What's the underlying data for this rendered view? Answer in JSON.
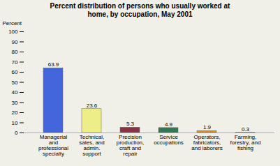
{
  "chart_data": {
    "type": "bar",
    "title": "Percent distribution of persons who usually worked at\nhome, by occupation, May 2001",
    "categories": [
      "Managerial\nand\nprofessional\nspecialty",
      "Technical,\nsales, and\nadmin.\nsupport",
      "Precision\nproduction,\ncraft and\nrepair",
      "Service\noccupations",
      "Operators,\nfabricators,\nand laborers",
      "Farming,\nforestry, and\nfishing"
    ],
    "values": [
      63.9,
      23.6,
      5.3,
      4.9,
      1.9,
      0.3
    ],
    "colors": [
      "#4466dd",
      "#eeee88",
      "#883344",
      "#337755",
      "#dd8822",
      "#ddddcc"
    ],
    "ylabel": "Percent",
    "ylim": [
      0,
      100
    ],
    "yticks": [
      0,
      10,
      20,
      30,
      40,
      50,
      60,
      70,
      80,
      90,
      100
    ],
    "data_labels": true
  }
}
